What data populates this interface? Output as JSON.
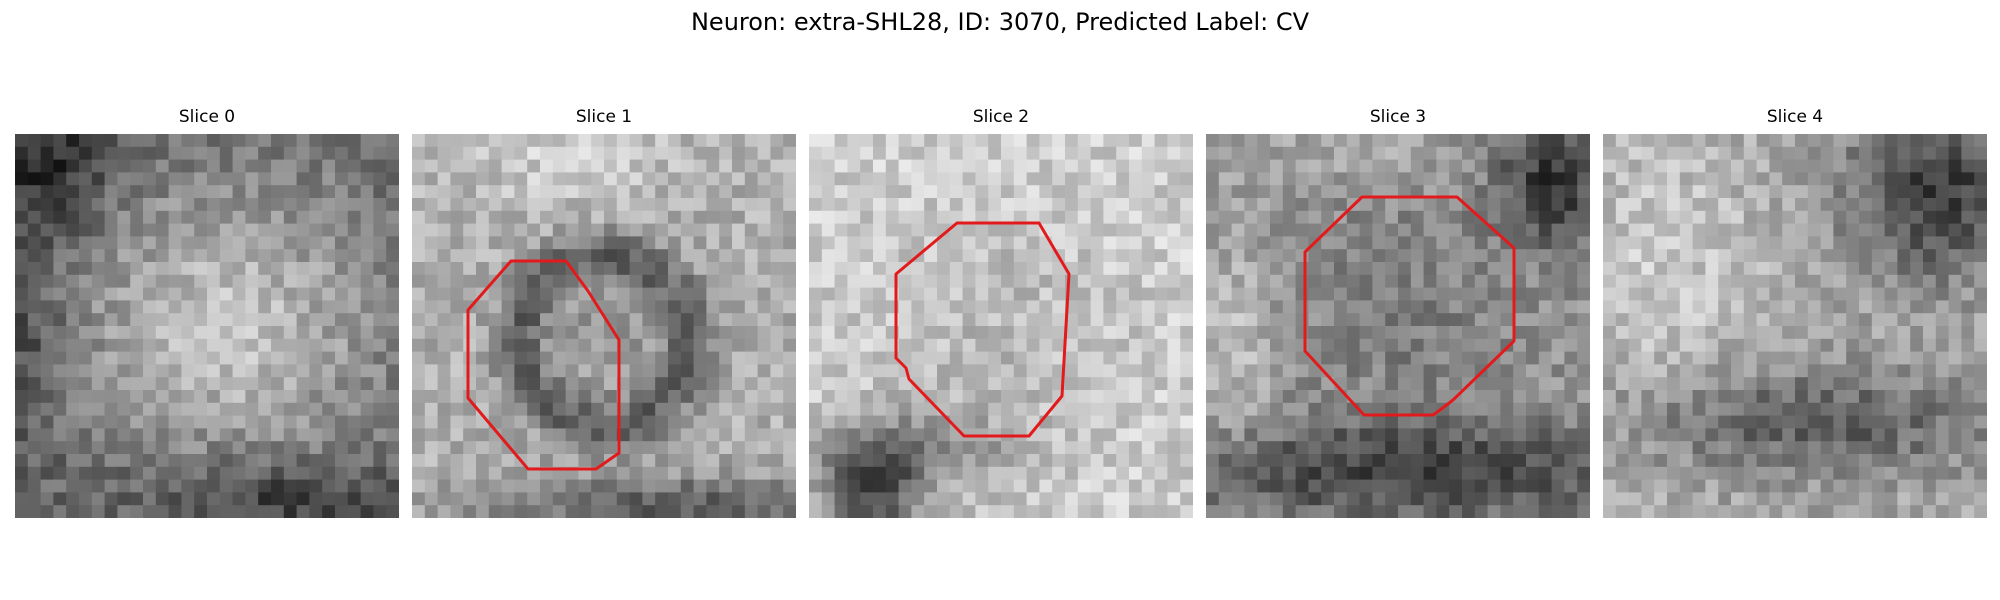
{
  "figure": {
    "title": "Neuron: extra-SHL28, ID: 3070, Predicted Label: CV"
  },
  "colors": {
    "contour": "#e31a1c"
  },
  "slices": [
    {
      "label": "Slice 0",
      "pattern": "bright-center-dark-corner",
      "has_contour": false
    },
    {
      "label": "Slice 1",
      "pattern": "dark-ring",
      "has_contour": true
    },
    {
      "label": "Slice 2",
      "pattern": "light-field",
      "has_contour": true
    },
    {
      "label": "Slice 3",
      "pattern": "mid-gray-with-dark-corner",
      "has_contour": true
    },
    {
      "label": "Slice 4",
      "pattern": "light-left-dark-right",
      "has_contour": false
    }
  ]
}
